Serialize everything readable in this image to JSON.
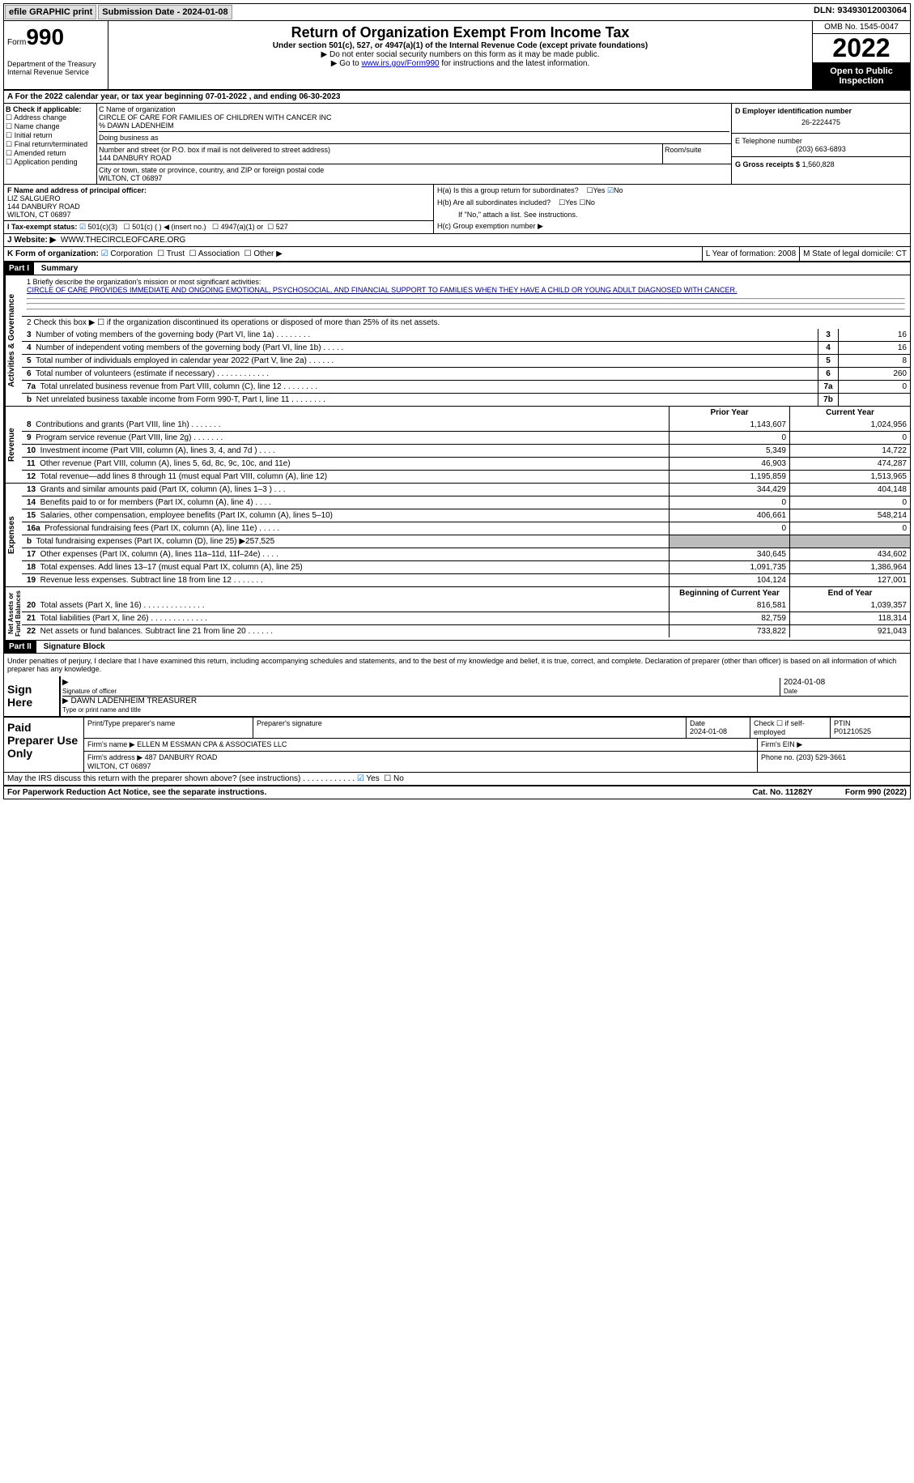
{
  "topbar": {
    "efile": "efile GRAPHIC print",
    "submission_label": "Submission Date - 2024-01-08",
    "dln": "DLN: 93493012003064"
  },
  "header": {
    "form_word": "Form",
    "form_number": "990",
    "dept": "Department of the Treasury\nInternal Revenue Service",
    "title": "Return of Organization Exempt From Income Tax",
    "section": "Under section 501(c), 527, or 4947(a)(1) of the Internal Revenue Code (except private foundations)",
    "note1": "▶ Do not enter social security numbers on this form as it may be made public.",
    "note2": "▶ Go to ",
    "link": "www.irs.gov/Form990",
    "note3": " for instructions and the latest information.",
    "omb": "OMB No. 1545-0047",
    "year": "2022",
    "inspect": "Open to Public Inspection"
  },
  "row_a": "A For the 2022 calendar year, or tax year beginning 07-01-2022    , and ending 06-30-2023",
  "box_b": {
    "label": "B Check if applicable:",
    "items": [
      "Address change",
      "Name change",
      "Initial return",
      "Final return/terminated",
      "Amended return",
      "Application pending"
    ]
  },
  "box_c": {
    "label": "C Name of organization",
    "name": "CIRCLE OF CARE FOR FAMILIES OF CHILDREN WITH CANCER INC\n% DAWN LADENHEIM",
    "dba": "Doing business as",
    "street_label": "Number and street (or P.O. box if mail is not delivered to street address)",
    "street": "144 DANBURY ROAD",
    "room_label": "Room/suite",
    "city_label": "City or town, state or province, country, and ZIP or foreign postal code",
    "city": "WILTON, CT  06897"
  },
  "box_d": {
    "label": "D Employer identification number",
    "val": "26-2224475"
  },
  "box_e": {
    "label": "E Telephone number",
    "val": "(203) 663-6893"
  },
  "box_g": {
    "label": "G Gross receipts $",
    "val": "1,560,828"
  },
  "box_f": {
    "label": "F Name and address of principal officer:",
    "lines": "LIZ SALGUERO\n144 DANBURY ROAD\nWILTON, CT  06897"
  },
  "box_h": {
    "a": "H(a)  Is this a group return for subordinates?",
    "b": "H(b)  Are all subordinates included?",
    "b_note": "If \"No,\" attach a list. See instructions.",
    "c": "H(c)  Group exemption number ▶",
    "yes": "Yes",
    "no": "No"
  },
  "row_i": "I    Tax-exempt status:",
  "i_opts": {
    "a": "501(c)(3)",
    "b": "501(c) (   ) ◀ (insert no.)",
    "c": "4947(a)(1) or",
    "d": "527"
  },
  "row_j": {
    "label": "J    Website: ▶",
    "val": "WWW.THECIRCLEOFCARE.ORG"
  },
  "row_k": {
    "label": "K Form of organization:",
    "opts": [
      "Corporation",
      "Trust",
      "Association",
      "Other ▶"
    ],
    "l": "L Year of formation: 2008",
    "m": "M State of legal domicile: CT"
  },
  "part1": {
    "num": "Part I",
    "title": "Summary"
  },
  "mission": {
    "label": "1   Briefly describe the organization's mission or most significant activities:",
    "text": "CIRCLE OF CARE PROVIDES IMMEDIATE AND ONGOING EMOTIONAL, PSYCHOSOCIAL, AND FINANCIAL SUPPORT TO FAMILIES WHEN THEY HAVE A CHILD OR YOUNG ADULT DIAGNOSED WITH CANCER."
  },
  "line2": "2   Check this box ▶ ☐ if the organization discontinued its operations or disposed of more than 25% of its net assets.",
  "vlabels": {
    "ag": "Activities & Governance",
    "rev": "Revenue",
    "exp": "Expenses",
    "na": "Net Assets or\nFund Balances"
  },
  "lines_ag": [
    {
      "n": "3",
      "label": "Number of voting members of the governing body (Part VI, line 1a)   .    .    .    .    .    .    .    .",
      "box": "3",
      "val": "16"
    },
    {
      "n": "4",
      "label": "Number of independent voting members of the governing body (Part VI, line 1b)  .    .    .    .    .",
      "box": "4",
      "val": "16"
    },
    {
      "n": "5",
      "label": "Total number of individuals employed in calendar year 2022 (Part V, line 2a)   .    .    .    .    .    .",
      "box": "5",
      "val": "8"
    },
    {
      "n": "6",
      "label": "Total number of volunteers (estimate if necessary)    .    .    .    .    .    .    .    .    .    .    .    .",
      "box": "6",
      "val": "260"
    },
    {
      "n": "7a",
      "label": "Total unrelated business revenue from Part VIII, column (C), line 12    .    .    .    .    .    .    .    .",
      "box": "7a",
      "val": "0"
    },
    {
      "n": "b",
      "label": "Net unrelated business taxable income from Form 990-T, Part I, line 11  .    .    .    .    .    .    .    .",
      "box": "7b",
      "val": ""
    }
  ],
  "year_cols": {
    "prior": "Prior Year",
    "curr": "Current Year"
  },
  "lines_rev": [
    {
      "n": "8",
      "label": "Contributions and grants (Part VIII, line 1h)   .    .    .    .    .    .    .",
      "p": "1,143,607",
      "c": "1,024,956"
    },
    {
      "n": "9",
      "label": "Program service revenue (Part VIII, line 2g)   .    .    .    .    .    .    .",
      "p": "0",
      "c": "0"
    },
    {
      "n": "10",
      "label": "Investment income (Part VIII, column (A), lines 3, 4, and 7d )   .    .    .    .",
      "p": "5,349",
      "c": "14,722"
    },
    {
      "n": "11",
      "label": "Other revenue (Part VIII, column (A), lines 5, 6d, 8c, 9c, 10c, and 11e)",
      "p": "46,903",
      "c": "474,287"
    },
    {
      "n": "12",
      "label": "Total revenue—add lines 8 through 11 (must equal Part VIII, column (A), line 12)",
      "p": "1,195,859",
      "c": "1,513,965"
    }
  ],
  "lines_exp": [
    {
      "n": "13",
      "label": "Grants and similar amounts paid (Part IX, column (A), lines 1–3 )  .    .    .",
      "p": "344,429",
      "c": "404,148"
    },
    {
      "n": "14",
      "label": "Benefits paid to or for members (Part IX, column (A), line 4)   .    .    .    .",
      "p": "0",
      "c": "0"
    },
    {
      "n": "15",
      "label": "Salaries, other compensation, employee benefits (Part IX, column (A), lines 5–10)",
      "p": "406,661",
      "c": "548,214"
    },
    {
      "n": "16a",
      "label": "Professional fundraising fees (Part IX, column (A), line 11e)   .    .    .    .    .",
      "p": "0",
      "c": "0"
    },
    {
      "n": "b",
      "label": "Total fundraising expenses (Part IX, column (D), line 25) ▶257,525",
      "p": "SHADE",
      "c": "SHADE"
    },
    {
      "n": "17",
      "label": "Other expenses (Part IX, column (A), lines 11a–11d, 11f–24e)   .    .    .    .",
      "p": "340,645",
      "c": "434,602"
    },
    {
      "n": "18",
      "label": "Total expenses. Add lines 13–17 (must equal Part IX, column (A), line 25)",
      "p": "1,091,735",
      "c": "1,386,964"
    },
    {
      "n": "19",
      "label": "Revenue less expenses. Subtract line 18 from line 12   .    .    .    .    .    .    .",
      "p": "104,124",
      "c": "127,001"
    }
  ],
  "na_cols": {
    "b": "Beginning of Current Year",
    "e": "End of Year"
  },
  "lines_na": [
    {
      "n": "20",
      "label": "Total assets (Part X, line 16)  .    .    .    .    .    .    .    .    .    .    .    .    .    .",
      "p": "816,581",
      "c": "1,039,357"
    },
    {
      "n": "21",
      "label": "Total liabilities (Part X, line 26)  .    .    .    .    .    .    .    .    .    .    .    .    .",
      "p": "82,759",
      "c": "118,314"
    },
    {
      "n": "22",
      "label": "Net assets or fund balances. Subtract line 21 from line 20   .    .    .    .    .    .",
      "p": "733,822",
      "c": "921,043"
    }
  ],
  "part2": {
    "num": "Part II",
    "title": "Signature Block"
  },
  "sig_decl": "Under penalties of perjury, I declare that I have examined this return, including accompanying schedules and statements, and to the best of my knowledge and belief, it is true, correct, and complete. Declaration of preparer (other than officer) is based on all information of which preparer has any knowledge.",
  "sign": {
    "here": "Sign Here",
    "sig_date": "2024-01-08",
    "sig_label": "Signature of officer",
    "date_label": "Date",
    "name": "DAWN LADENHEIM  TREASURER",
    "name_label": "Type or print name and title"
  },
  "paid": {
    "label": "Paid Preparer Use Only",
    "h1": "Print/Type preparer's name",
    "h2": "Preparer's signature",
    "h3": "Date",
    "h3v": "2024-01-08",
    "h4": "Check ☐ if self-employed",
    "h5": "PTIN",
    "h5v": "P01210525",
    "f1": "Firm's name      ▶",
    "f1v": "ELLEN M ESSMAN CPA & ASSOCIATES LLC",
    "f2": "Firm's EIN ▶",
    "a1": "Firm's address ▶",
    "a1v": "487 DANBURY ROAD\nWILTON, CT  06897",
    "a2": "Phone no. (203) 529-3661"
  },
  "may": "May the IRS discuss this return with the preparer shown above? (see instructions)    .    .    .    .    .    .    .    .    .    .    .    .",
  "footer": {
    "l": "For Paperwork Reduction Act Notice, see the separate instructions.",
    "c": "Cat. No. 11282Y",
    "r": "Form 990 (2022)"
  }
}
